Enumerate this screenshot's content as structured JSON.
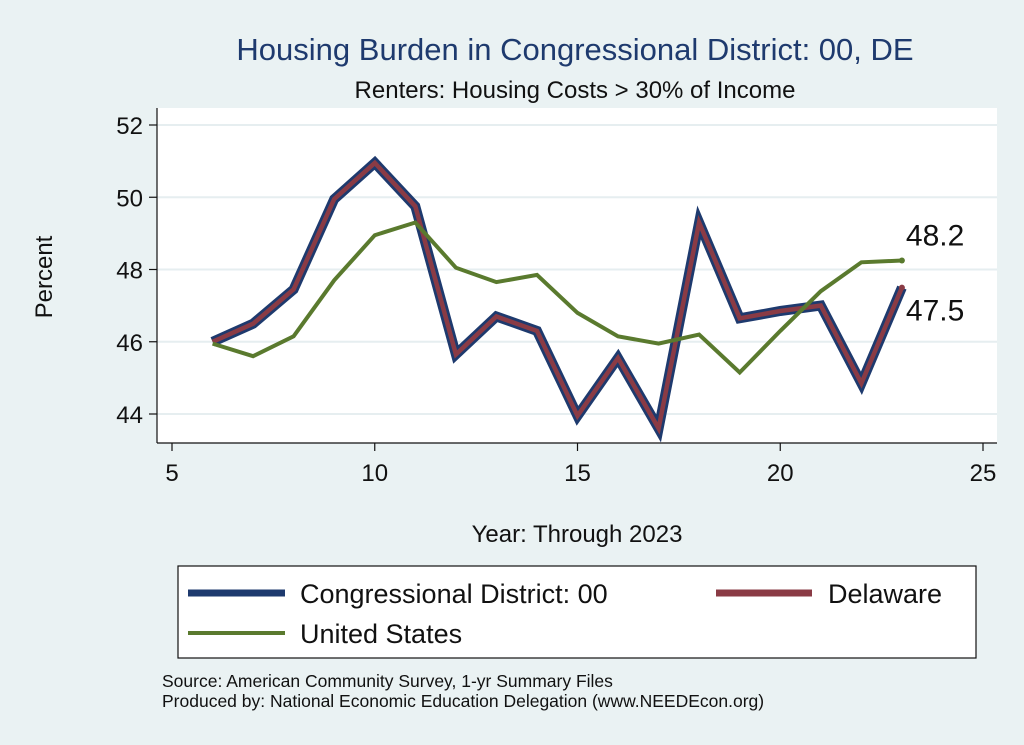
{
  "chart_data": {
    "type": "line",
    "title": "Housing Burden in Congressional District:  00, DE",
    "subtitle": "Renters: Housing Costs > 30% of Income",
    "xlabel": "Year: Through 2023",
    "ylabel": "Percent",
    "xlim": [
      5,
      25
    ],
    "ylim": [
      43.2,
      52.4
    ],
    "xticks": [
      5,
      10,
      15,
      20,
      25
    ],
    "yticks": [
      44,
      46,
      48,
      50,
      52
    ],
    "x": [
      6,
      7,
      8,
      9,
      10,
      11,
      12,
      13,
      14,
      15,
      16,
      17,
      18,
      19,
      20,
      21,
      22,
      23
    ],
    "series": [
      {
        "name": "Congressional District:  00",
        "color": "#1e3a6e",
        "values": [
          46.0,
          46.5,
          47.45,
          49.95,
          50.95,
          49.75,
          45.65,
          46.7,
          46.3,
          43.95,
          45.55,
          43.6,
          49.3,
          46.65,
          46.85,
          47.0,
          44.85,
          47.5
        ]
      },
      {
        "name": "Delaware",
        "color": "#8a3b45",
        "values": [
          46.0,
          46.5,
          47.45,
          49.95,
          50.95,
          49.75,
          45.65,
          46.7,
          46.3,
          43.95,
          45.55,
          43.6,
          49.3,
          46.65,
          46.85,
          47.0,
          44.85,
          47.5
        ]
      },
      {
        "name": "United States",
        "color": "#5a7a2e",
        "values": [
          45.95,
          45.6,
          46.15,
          47.7,
          48.95,
          49.3,
          48.05,
          47.65,
          47.85,
          46.8,
          46.15,
          45.95,
          46.2,
          45.15,
          46.3,
          47.4,
          48.2,
          48.25
        ]
      }
    ],
    "end_labels": [
      {
        "text": "48.2",
        "series": "United States"
      },
      {
        "text": "47.5",
        "series": "Delaware"
      }
    ],
    "legend": {
      "position": "bottom",
      "entries": [
        "Congressional District:  00",
        "Delaware",
        "United States"
      ]
    }
  },
  "notes": {
    "source": "Source: American Community Survey, 1-yr Summary Files",
    "produced_by": "Produced by: National Economic Education Delegation (www.NEEDEcon.org)"
  }
}
